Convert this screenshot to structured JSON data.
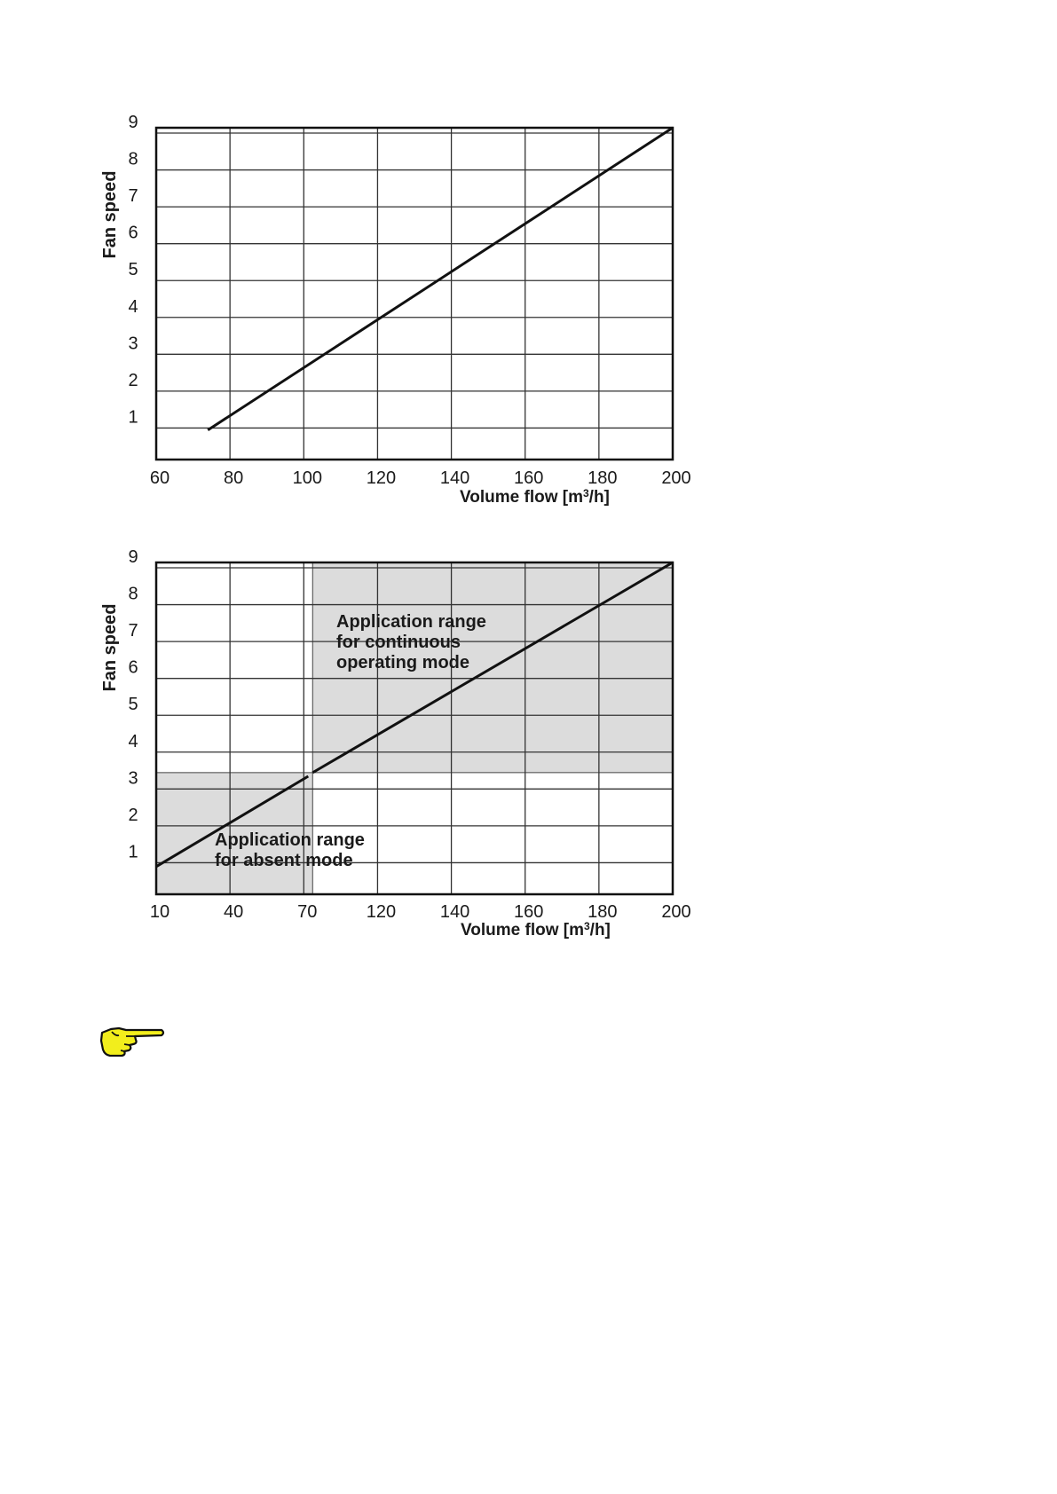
{
  "chart_data": [
    {
      "type": "line",
      "ylabel": "Fan speed",
      "xlabel": "Volume flow [m³/h]",
      "xlabel_parts": [
        "Volume flow [m",
        "3",
        "/h]"
      ],
      "x_ticks": [
        "60",
        "80",
        "100",
        "120",
        "140",
        "160",
        "180",
        "200"
      ],
      "y_ticks": [
        "1",
        "2",
        "3",
        "4",
        "5",
        "6",
        "7",
        "8",
        "9"
      ],
      "xlim": [
        60,
        200
      ],
      "ylim": [
        0,
        9
      ],
      "grid": true,
      "series": [
        {
          "x": [
            74,
            200
          ],
          "y": [
            0.8,
            9.0
          ]
        }
      ]
    },
    {
      "type": "line",
      "ylabel": "Fan speed",
      "xlabel": "Volume flow [m³/h]",
      "xlabel_parts": [
        "Volume flow [m",
        "3",
        "/h]"
      ],
      "x_ticks": [
        "10",
        "40",
        "70",
        "120",
        "140",
        "160",
        "180",
        "200"
      ],
      "y_ticks": [
        "1",
        "2",
        "3",
        "4",
        "5",
        "6",
        "7",
        "8",
        "9"
      ],
      "ylim": [
        0,
        9
      ],
      "grid": true,
      "series": [
        {
          "x": [
            10,
            73
          ],
          "y": [
            0.75,
            3.2
          ]
        },
        {
          "x": [
            76,
            200
          ],
          "y": [
            3.3,
            9.0
          ]
        }
      ],
      "regions": [
        {
          "label_lines": [
            "Application range",
            "for continuous",
            "operating mode"
          ],
          "x": [
            76,
            200
          ],
          "y": [
            3.3,
            9.0
          ],
          "color": "#dcdcdc"
        },
        {
          "label_lines": [
            "Application range",
            "for absent mode"
          ],
          "x": [
            10,
            76
          ],
          "y": [
            0,
            3.3
          ],
          "color": "#dcdcdc"
        }
      ]
    }
  ],
  "note_icon": {
    "name": "pointing-hand-icon",
    "color": "#f2ee1c"
  }
}
